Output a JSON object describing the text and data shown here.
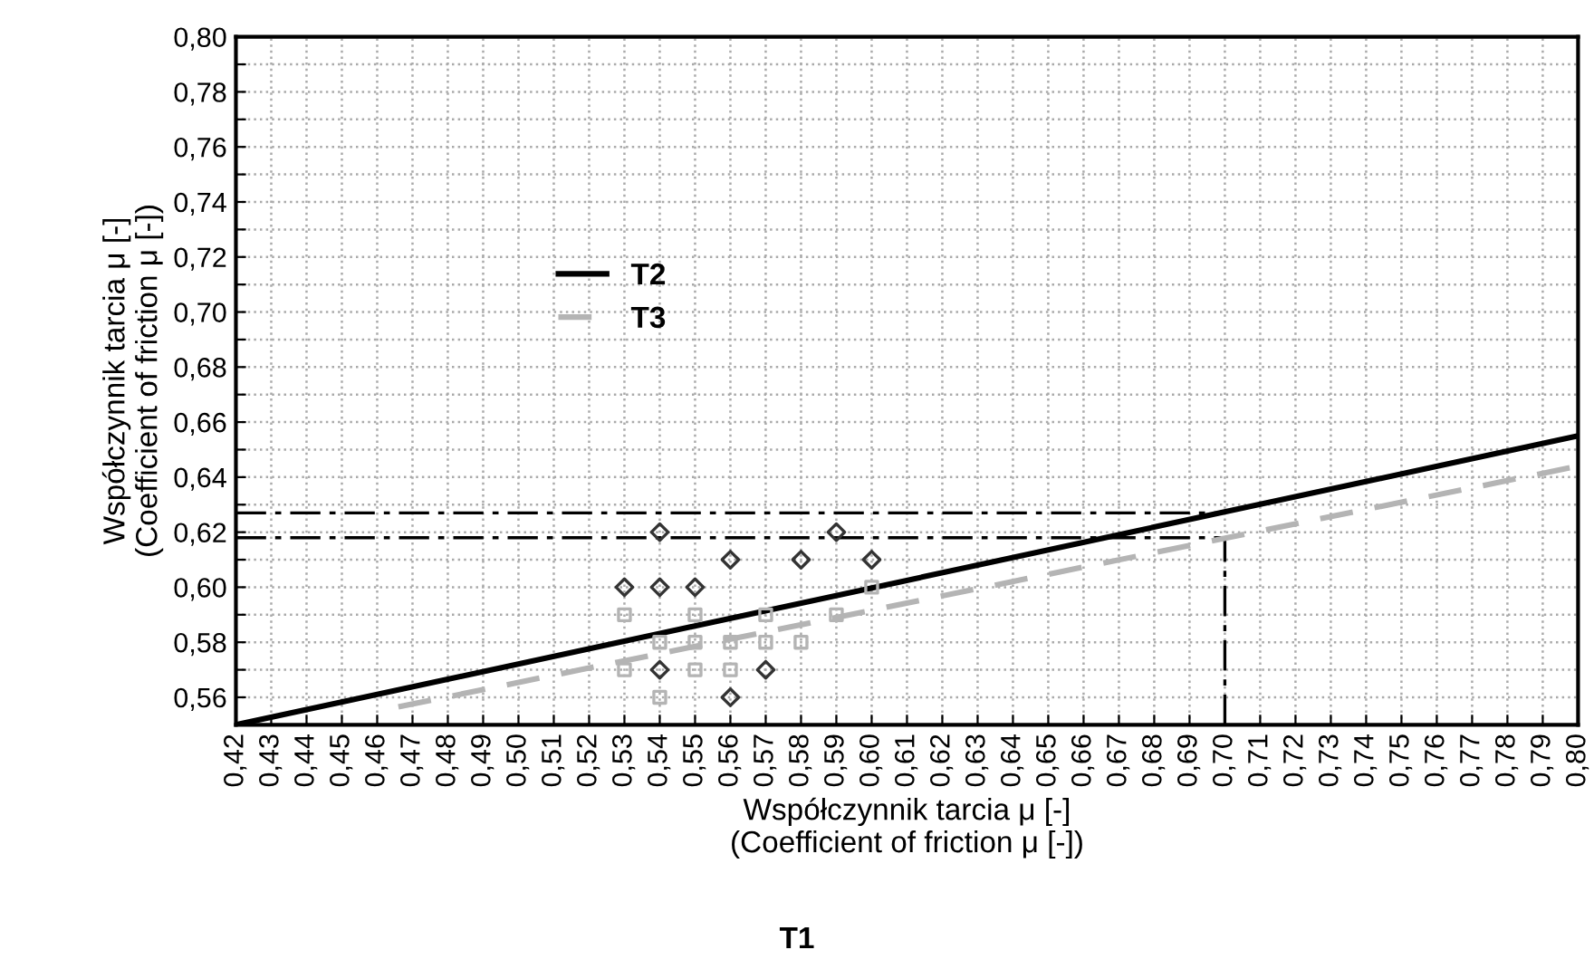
{
  "chart_data": {
    "type": "scatter",
    "title": "T1",
    "xlabel": "Współczynnik tarcia μ [-]\n(Coefficient of friction μ [-])",
    "ylabel": "Współczynnik tarcia μ [-]\n(Coefficient of friction μ [-])",
    "series": [
      {
        "name": "T2",
        "type": "line",
        "color": "#000000",
        "line_style": "solid",
        "marker": "none",
        "x": [
          0.42,
          0.8
        ],
        "values": [
          0.55,
          0.655
        ]
      },
      {
        "name": "T3",
        "type": "line",
        "color": "#b4b4b4",
        "line_style": "dashed",
        "marker": "none",
        "x": [
          0.466,
          0.8
        ],
        "values": [
          0.5565,
          0.644
        ]
      },
      {
        "type": "scatter",
        "color": "#333333",
        "marker": "diamond",
        "x": [
          0.54,
          0.59,
          0.56,
          0.58,
          0.6,
          0.53,
          0.54,
          0.55,
          0.54,
          0.57,
          0.56
        ],
        "values": [
          0.62,
          0.62,
          0.61,
          0.61,
          0.61,
          0.6,
          0.6,
          0.6,
          0.57,
          0.57,
          0.56
        ]
      },
      {
        "type": "scatter",
        "color": "#b4b4b4",
        "marker": "square",
        "x": [
          0.53,
          0.55,
          0.57,
          0.59,
          0.6,
          0.54,
          0.55,
          0.56,
          0.57,
          0.58,
          0.53,
          0.55,
          0.56,
          0.54
        ],
        "values": [
          0.59,
          0.59,
          0.59,
          0.59,
          0.6,
          0.58,
          0.58,
          0.58,
          0.58,
          0.58,
          0.57,
          0.57,
          0.57,
          0.56
        ]
      }
    ],
    "ref_lines": [
      {
        "axis": "y",
        "value": 0.627,
        "color": "#000000",
        "line_style": "dashdot"
      },
      {
        "axis": "y",
        "value": 0.618,
        "color": "#000000",
        "line_style": "dashdot"
      },
      {
        "axis": "x",
        "value": 0.7,
        "color": "#000000",
        "line_style": "dashdot"
      }
    ],
    "xlim": [
      0.42,
      0.8
    ],
    "xticks": [
      {
        "value": 0.42,
        "label": "0,42"
      },
      {
        "value": 0.43,
        "label": "0,43"
      },
      {
        "value": 0.44,
        "label": "0,44"
      },
      {
        "value": 0.45,
        "label": "0,45"
      },
      {
        "value": 0.46,
        "label": "0,46"
      },
      {
        "value": 0.47,
        "label": "0,47"
      },
      {
        "value": 0.48,
        "label": "0,48"
      },
      {
        "value": 0.49,
        "label": "0,49"
      },
      {
        "value": 0.5,
        "label": "0,50"
      },
      {
        "value": 0.51,
        "label": "0,51"
      },
      {
        "value": 0.52,
        "label": "0,52"
      },
      {
        "value": 0.53,
        "label": "0,53"
      },
      {
        "value": 0.54,
        "label": "0,54"
      },
      {
        "value": 0.55,
        "label": "0,55"
      },
      {
        "value": 0.56,
        "label": "0,56"
      },
      {
        "value": 0.57,
        "label": "0,57"
      },
      {
        "value": 0.58,
        "label": "0,58"
      },
      {
        "value": 0.59,
        "label": "0,59"
      },
      {
        "value": 0.6,
        "label": "0,60"
      },
      {
        "value": 0.61,
        "label": "0,61"
      },
      {
        "value": 0.62,
        "label": "0,62"
      },
      {
        "value": 0.63,
        "label": "0,63"
      },
      {
        "value": 0.64,
        "label": "0,64"
      },
      {
        "value": 0.65,
        "label": "0,65"
      },
      {
        "value": 0.66,
        "label": "0,66"
      },
      {
        "value": 0.67,
        "label": "0,67"
      },
      {
        "value": 0.68,
        "label": "0,68"
      },
      {
        "value": 0.69,
        "label": "0,69"
      },
      {
        "value": 0.7,
        "label": "0,70"
      },
      {
        "value": 0.71,
        "label": "0,71"
      },
      {
        "value": 0.72,
        "label": "0,72"
      },
      {
        "value": 0.73,
        "label": "0,73"
      },
      {
        "value": 0.74,
        "label": "0,74"
      },
      {
        "value": 0.75,
        "label": "0,75"
      },
      {
        "value": 0.76,
        "label": "0,76"
      },
      {
        "value": 0.77,
        "label": "0,77"
      },
      {
        "value": 0.78,
        "label": "0,78"
      },
      {
        "value": 0.79,
        "label": "0,79"
      },
      {
        "value": 0.8,
        "label": "0,80"
      }
    ],
    "ylim": [
      0.55,
      0.8
    ],
    "yticks": [
      {
        "value": 0.56,
        "label": "0,56"
      },
      {
        "value": 0.57,
        "label": null
      },
      {
        "value": 0.58,
        "label": "0,58"
      },
      {
        "value": 0.59,
        "label": null
      },
      {
        "value": 0.6,
        "label": "0,60"
      },
      {
        "value": 0.61,
        "label": null
      },
      {
        "value": 0.62,
        "label": "0,62"
      },
      {
        "value": 0.63,
        "label": null
      },
      {
        "value": 0.64,
        "label": "0,64"
      },
      {
        "value": 0.65,
        "label": null
      },
      {
        "value": 0.66,
        "label": "0,66"
      },
      {
        "value": 0.67,
        "label": null
      },
      {
        "value": 0.68,
        "label": "0,68"
      },
      {
        "value": 0.69,
        "label": null
      },
      {
        "value": 0.7,
        "label": "0,70"
      },
      {
        "value": 0.71,
        "label": null
      },
      {
        "value": 0.72,
        "label": "0,72"
      },
      {
        "value": 0.73,
        "label": null
      },
      {
        "value": 0.74,
        "label": "0,74"
      },
      {
        "value": 0.75,
        "label": null
      },
      {
        "value": 0.76,
        "label": "0,76"
      },
      {
        "value": 0.77,
        "label": null
      },
      {
        "value": 0.78,
        "label": "0,78"
      },
      {
        "value": 0.79,
        "label": null
      },
      {
        "value": 0.8,
        "label": "0,80"
      }
    ],
    "grid": true,
    "legend": "left"
  }
}
